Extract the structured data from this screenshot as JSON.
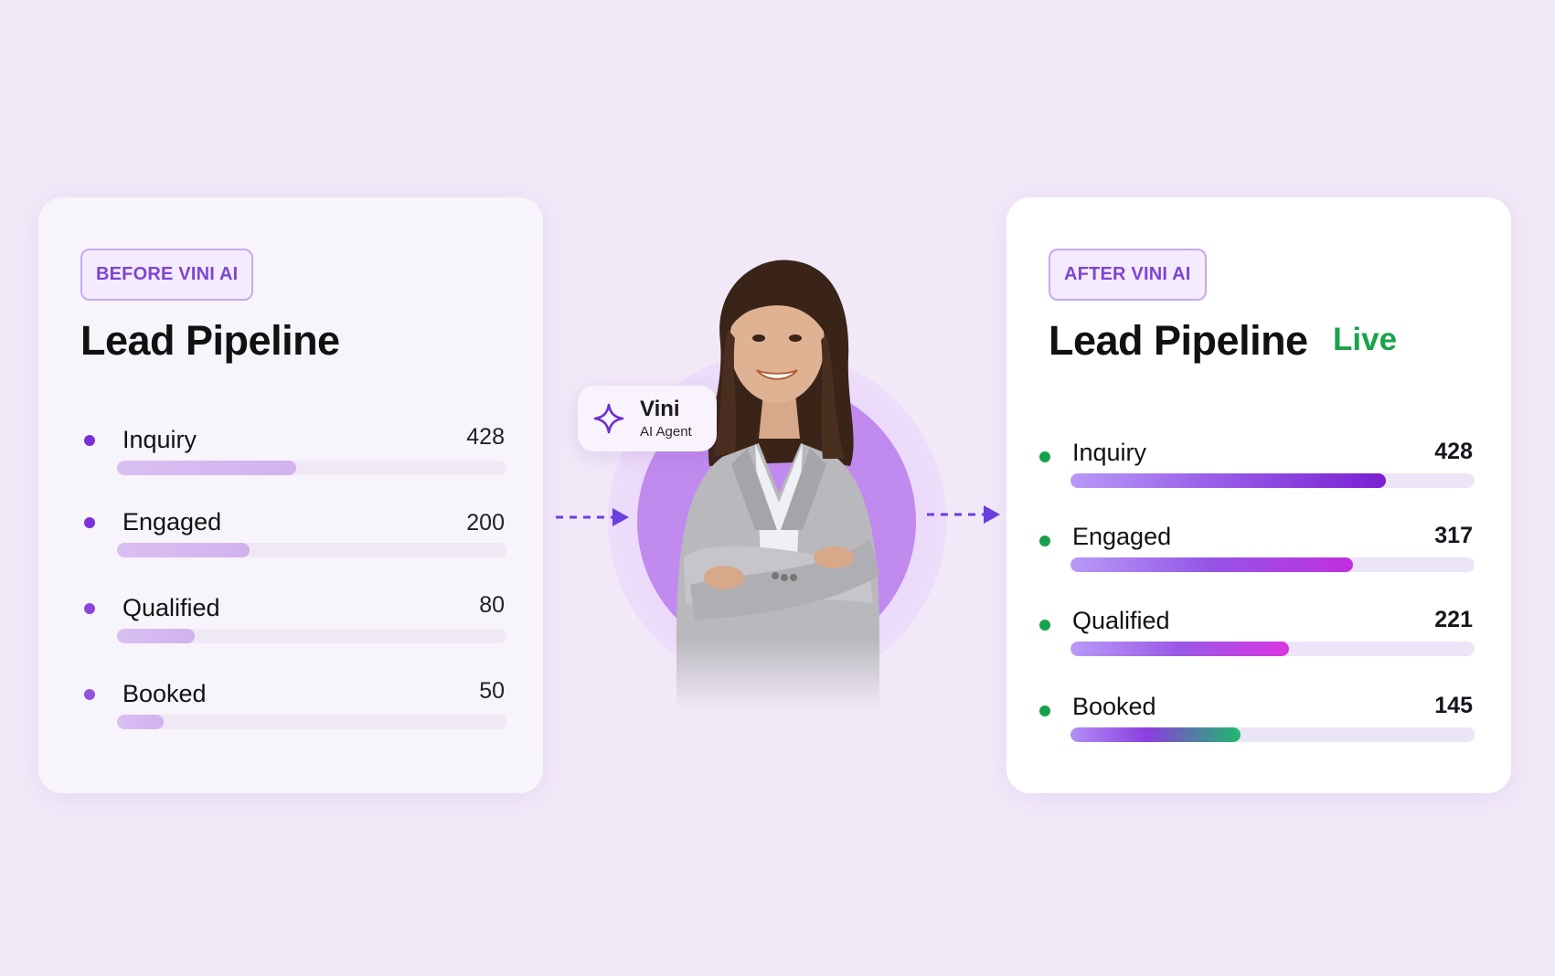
{
  "before_card": {
    "badge": "BEFORE VINI AI",
    "title": "Lead Pipeline",
    "rows": [
      {
        "label": "Inquiry",
        "value": "428",
        "progress": 0.46
      },
      {
        "label": "Engaged",
        "value": "200",
        "progress": 0.34
      },
      {
        "label": "Qualified",
        "value": "80",
        "progress": 0.2
      },
      {
        "label": "Booked",
        "value": "50",
        "progress": 0.12
      }
    ]
  },
  "after_card": {
    "badge": "AFTER VINI AI",
    "title": "Lead Pipeline",
    "live_label": "Live",
    "rows": [
      {
        "label": "Inquiry",
        "value": "428",
        "progress": 0.78
      },
      {
        "label": "Engaged",
        "value": "317",
        "progress": 0.7
      },
      {
        "label": "Qualified",
        "value": "221",
        "progress": 0.54
      },
      {
        "label": "Booked",
        "value": "145",
        "progress": 0.42
      }
    ]
  },
  "agent": {
    "name": "Vini",
    "role": "AI Agent",
    "icon": "sparkle-icon"
  },
  "colors": {
    "accent_purple": "#7e44d3",
    "live_green": "#1aa34a",
    "background": "#f1e8f8"
  }
}
